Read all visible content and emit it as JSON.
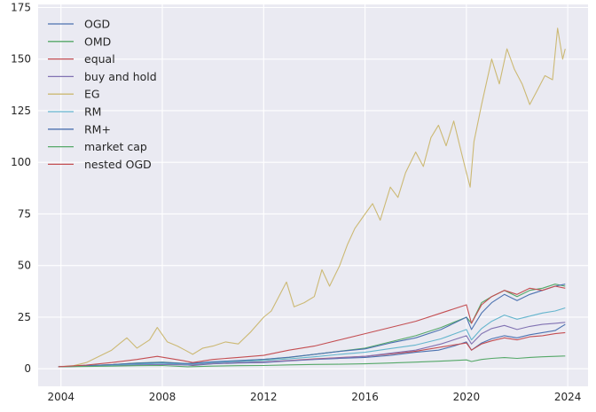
{
  "chart_data": {
    "type": "line",
    "title": "",
    "xlabel": "",
    "ylabel": "",
    "xlim": [
      2003.1,
      2024.8
    ],
    "ylim": [
      -8.5,
      176.5
    ],
    "xticks": [
      2004,
      2008,
      2012,
      2016,
      2020,
      2024
    ],
    "xtick_labels": [
      "2004",
      "2008",
      "2012",
      "2016",
      "2020",
      "2024"
    ],
    "yticks": [
      0,
      25,
      50,
      75,
      100,
      125,
      150,
      175
    ],
    "ytick_labels": [
      "0",
      "25",
      "50",
      "75",
      "100",
      "125",
      "150",
      "175"
    ],
    "grid": true,
    "legend_position": "top-left",
    "series": [
      {
        "name": "OGD",
        "color": "#4c72b0",
        "x": [
          2003.9,
          2005,
          2006,
          2007,
          2007.9,
          2008.8,
          2009.2,
          2010,
          2011,
          2012,
          2013,
          2014,
          2015,
          2016,
          2017,
          2018,
          2018.9,
          2019.5,
          2020.0,
          2020.2,
          2020.6,
          2021,
          2021.5,
          2022,
          2022.5,
          2023,
          2023.5,
          2023.9
        ],
        "y": [
          1,
          1.3,
          1.7,
          2.2,
          2.8,
          2.0,
          1.6,
          2.4,
          2.8,
          3.0,
          3.8,
          4.5,
          5.0,
          5.5,
          6.5,
          8.0,
          9.0,
          11.0,
          13.0,
          9.0,
          12.5,
          14.5,
          16.0,
          15.0,
          16.5,
          17.5,
          18.5,
          21.5
        ]
      },
      {
        "name": "OMD",
        "color": "#55a868",
        "x": [
          2003.9,
          2005,
          2006,
          2007,
          2008,
          2009,
          2010,
          2011,
          2012,
          2013,
          2014,
          2015,
          2016,
          2017,
          2018,
          2019,
          2020.0,
          2020.2,
          2020.6,
          2021,
          2021.5,
          2022,
          2022.5,
          2023,
          2023.5,
          2023.9
        ],
        "y": [
          1,
          1.5,
          2.0,
          2.8,
          3.2,
          2.5,
          3.3,
          3.8,
          4.5,
          5.5,
          7.0,
          8.5,
          10.0,
          13.0,
          16.0,
          20.0,
          25.0,
          22.0,
          32.0,
          35.0,
          38.0,
          35.0,
          38.0,
          39.0,
          41.0,
          40.0
        ]
      },
      {
        "name": "equal",
        "color": "#c44e52",
        "x": [
          2003.9,
          2005,
          2006,
          2007,
          2007.9,
          2008.8,
          2009.2,
          2010,
          2011,
          2012,
          2013,
          2014,
          2015,
          2016,
          2017,
          2018,
          2019,
          2020.0,
          2020.2,
          2020.6,
          2021,
          2021.5,
          2022,
          2022.5,
          2023,
          2023.5,
          2023.9
        ],
        "y": [
          1,
          1.4,
          1.9,
          2.4,
          2.9,
          2.2,
          1.8,
          2.6,
          3.0,
          3.3,
          4.0,
          4.8,
          5.4,
          6.0,
          7.2,
          8.5,
          10.5,
          12.5,
          9.0,
          12.0,
          13.5,
          15.0,
          14.0,
          15.5,
          16.0,
          17.0,
          17.5
        ]
      },
      {
        "name": "buy and hold",
        "color": "#8172b2",
        "x": [
          2003.9,
          2005,
          2006,
          2007,
          2008,
          2009,
          2010,
          2011,
          2012,
          2013,
          2014,
          2015,
          2016,
          2017,
          2018,
          2019,
          2020.0,
          2020.2,
          2020.6,
          2021,
          2021.5,
          2022,
          2022.5,
          2023,
          2023.5,
          2023.9
        ],
        "y": [
          1,
          1.3,
          1.6,
          1.9,
          2.1,
          1.8,
          2.5,
          3.0,
          3.2,
          3.9,
          4.6,
          5.3,
          6.0,
          7.5,
          9.0,
          12.0,
          16.0,
          12.0,
          17.0,
          19.5,
          21.0,
          19.0,
          20.5,
          21.5,
          22.0,
          22.5
        ]
      },
      {
        "name": "EG",
        "color": "#ccb974",
        "x": [
          2003.9,
          2004.5,
          2005,
          2005.5,
          2006,
          2006.3,
          2006.6,
          2007,
          2007.5,
          2007.8,
          2008.2,
          2008.6,
          2008.9,
          2009.2,
          2009.6,
          2010,
          2010.5,
          2011,
          2011.5,
          2012,
          2012.3,
          2012.6,
          2012.9,
          2013.2,
          2013.6,
          2014,
          2014.3,
          2014.6,
          2015,
          2015.3,
          2015.6,
          2016,
          2016.3,
          2016.6,
          2017,
          2017.3,
          2017.6,
          2018,
          2018.3,
          2018.6,
          2018.9,
          2019.2,
          2019.5,
          2019.8,
          2020.0,
          2020.15,
          2020.3,
          2020.6,
          2021,
          2021.3,
          2021.6,
          2021.9,
          2022.2,
          2022.5,
          2022.8,
          2023.1,
          2023.4,
          2023.6,
          2023.8,
          2023.9
        ],
        "y": [
          1,
          1.5,
          3,
          6,
          9,
          12,
          15,
          10,
          14,
          20,
          13,
          11,
          9,
          7,
          10,
          11,
          13,
          12,
          18,
          25,
          28,
          35,
          42,
          30,
          32,
          35,
          48,
          40,
          50,
          60,
          68,
          75,
          80,
          72,
          88,
          83,
          95,
          105,
          98,
          112,
          118,
          108,
          120,
          105,
          95,
          88,
          110,
          128,
          150,
          138,
          155,
          145,
          138,
          128,
          135,
          142,
          140,
          165,
          150,
          155
        ]
      },
      {
        "name": "RM",
        "color": "#64b5cd",
        "x": [
          2003.9,
          2005,
          2006,
          2007,
          2008,
          2009,
          2010,
          2011,
          2012,
          2013,
          2014,
          2015,
          2016,
          2017,
          2018,
          2019,
          2020.0,
          2020.2,
          2020.6,
          2021,
          2021.5,
          2022,
          2022.5,
          2023,
          2023.5,
          2023.9
        ],
        "y": [
          1,
          1.4,
          1.8,
          2.3,
          2.7,
          2.2,
          3.0,
          3.5,
          4.0,
          4.8,
          5.8,
          7.0,
          8.0,
          9.8,
          11.5,
          14.5,
          19.0,
          14.0,
          19.5,
          23.0,
          26.0,
          24.0,
          25.5,
          27.0,
          28.0,
          29.5
        ]
      },
      {
        "name": "RM+",
        "color": "#4c72b0",
        "x": [
          2003.9,
          2005,
          2006,
          2007,
          2008,
          2009,
          2010,
          2011,
          2012,
          2013,
          2014,
          2015,
          2016,
          2017,
          2018,
          2019,
          2020.0,
          2020.2,
          2020.6,
          2021,
          2021.5,
          2022,
          2022.5,
          2023,
          2023.5,
          2023.9
        ],
        "y": [
          1,
          1.5,
          2.0,
          2.7,
          3.1,
          2.5,
          3.4,
          4.0,
          4.6,
          5.6,
          7.0,
          8.4,
          9.6,
          12.5,
          15.0,
          19.0,
          25.0,
          19.0,
          27.0,
          32.0,
          36.0,
          33.0,
          36.0,
          38.0,
          40.0,
          41.0
        ]
      },
      {
        "name": "market cap",
        "color": "#55a868",
        "x": [
          2003.9,
          2005,
          2006,
          2007,
          2008,
          2009,
          2010,
          2011,
          2012,
          2013,
          2014,
          2015,
          2016,
          2017,
          2018,
          2019,
          2020.0,
          2020.2,
          2020.6,
          2021,
          2021.5,
          2022,
          2022.5,
          2023,
          2023.5,
          2023.9
        ],
        "y": [
          1,
          1.1,
          1.3,
          1.5,
          1.6,
          1.0,
          1.3,
          1.5,
          1.6,
          1.9,
          2.1,
          2.2,
          2.4,
          2.8,
          3.2,
          3.7,
          4.3,
          3.5,
          4.5,
          5.0,
          5.4,
          5.0,
          5.5,
          5.8,
          6.0,
          6.2
        ]
      },
      {
        "name": "nested OGD",
        "color": "#c44e52",
        "x": [
          2003.9,
          2005,
          2006,
          2007,
          2007.8,
          2008.8,
          2009.2,
          2010,
          2011,
          2012,
          2013,
          2014,
          2015,
          2016,
          2017,
          2018,
          2019,
          2020.0,
          2020.2,
          2020.6,
          2021,
          2021.5,
          2022,
          2022.5,
          2023,
          2023.5,
          2023.9
        ],
        "y": [
          1,
          1.8,
          3.0,
          4.5,
          6.0,
          4.0,
          3.0,
          4.5,
          5.5,
          6.5,
          9.0,
          11.0,
          14.0,
          17.0,
          20.0,
          23.0,
          27.0,
          31.0,
          22.0,
          31.0,
          35.0,
          38.0,
          36.0,
          39.0,
          38.0,
          40.0,
          39.0
        ]
      }
    ]
  }
}
